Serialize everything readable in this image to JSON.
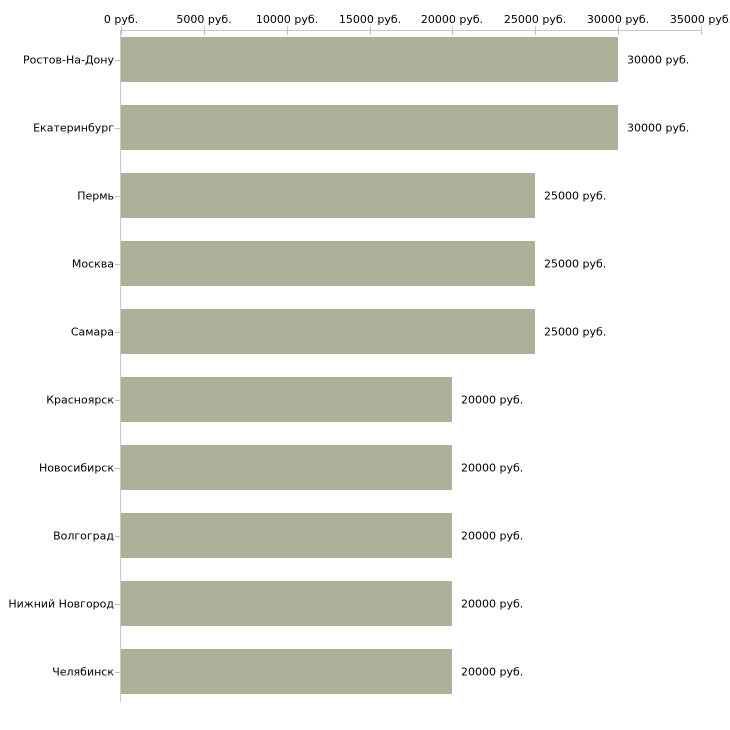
{
  "chart_data": {
    "type": "bar",
    "orientation": "horizontal",
    "title": "",
    "categories": [
      "Ростов-На-Дону",
      "Екатеринбург",
      "Пермь",
      "Москва",
      "Самара",
      "Красноярск",
      "Новосибирск",
      "Волгоград",
      "Нижний Новгород",
      "Челябинск"
    ],
    "values": [
      30000,
      30000,
      25000,
      25000,
      25000,
      20000,
      20000,
      20000,
      20000,
      20000
    ],
    "value_labels": [
      "30000 руб.",
      "30000 руб.",
      "25000 руб.",
      "25000 руб.",
      "25000 руб.",
      "20000 руб.",
      "20000 руб.",
      "20000 руб.",
      "20000 руб.",
      "20000 руб."
    ],
    "unit": "руб.",
    "x_axis": {
      "position": "top",
      "min": 0,
      "max": 35000,
      "tick_step": 5000,
      "tick_labels": [
        "0 руб.",
        "5000 руб.",
        "10000 руб.",
        "15000 руб.",
        "20000 руб.",
        "25000 руб.",
        "30000 руб.",
        "35000 руб."
      ]
    },
    "grid": false,
    "legend": false,
    "colors": {
      "bar": "#acb299",
      "axis_line": "#c8c8c4",
      "tick": "#c3c5a0",
      "text": "#000000",
      "background": "#ffffff"
    }
  }
}
